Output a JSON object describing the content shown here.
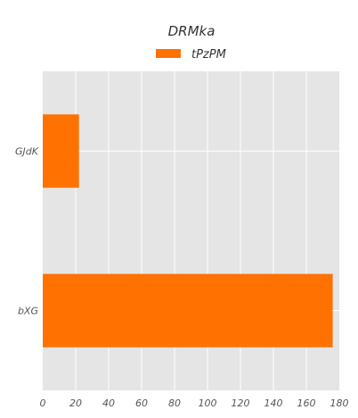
{
  "chart_data": {
    "type": "bar",
    "orientation": "horizontal",
    "title": "DRMka",
    "xlabel": "",
    "ylabel": "",
    "categories": [
      "GJdK",
      "bXG"
    ],
    "series": [
      {
        "name": "tPzPM",
        "values": [
          22,
          176
        ],
        "color": "#ff7100"
      }
    ],
    "xlim": [
      0,
      180
    ],
    "xticks": [
      "0",
      "20",
      "40",
      "60",
      "80",
      "100",
      "120",
      "140",
      "160",
      "180"
    ],
    "grid": true,
    "legend_position": "top-center",
    "background_color": "#e5e5e5"
  }
}
